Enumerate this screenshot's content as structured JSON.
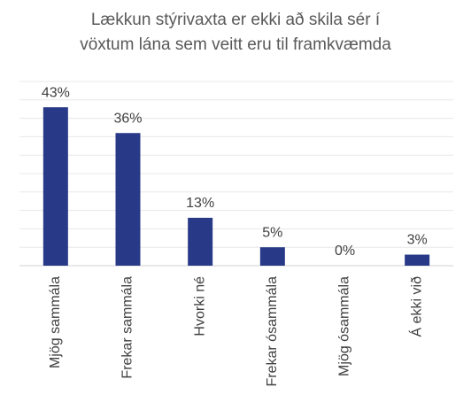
{
  "chart_data": {
    "type": "bar",
    "title": [
      "Lækkun stýrivaxta er ekki að skila sér í",
      "vöxtum lána sem veitt eru til framkvæmda"
    ],
    "categories": [
      "Mjög sammála",
      "Frekar sammála",
      "Hvorki né",
      "Frekar ósammála",
      "Mjög ósammála",
      "Á ekki við"
    ],
    "values": [
      43,
      36,
      13,
      5,
      0,
      3
    ],
    "value_labels": [
      "43%",
      "36%",
      "13%",
      "5%",
      "0%",
      "3%"
    ],
    "color": "#283a87",
    "ylim": [
      0,
      50
    ],
    "yticks": [
      0,
      5,
      10,
      15,
      20,
      25,
      30,
      35,
      40,
      45,
      50
    ],
    "grid": true
  }
}
